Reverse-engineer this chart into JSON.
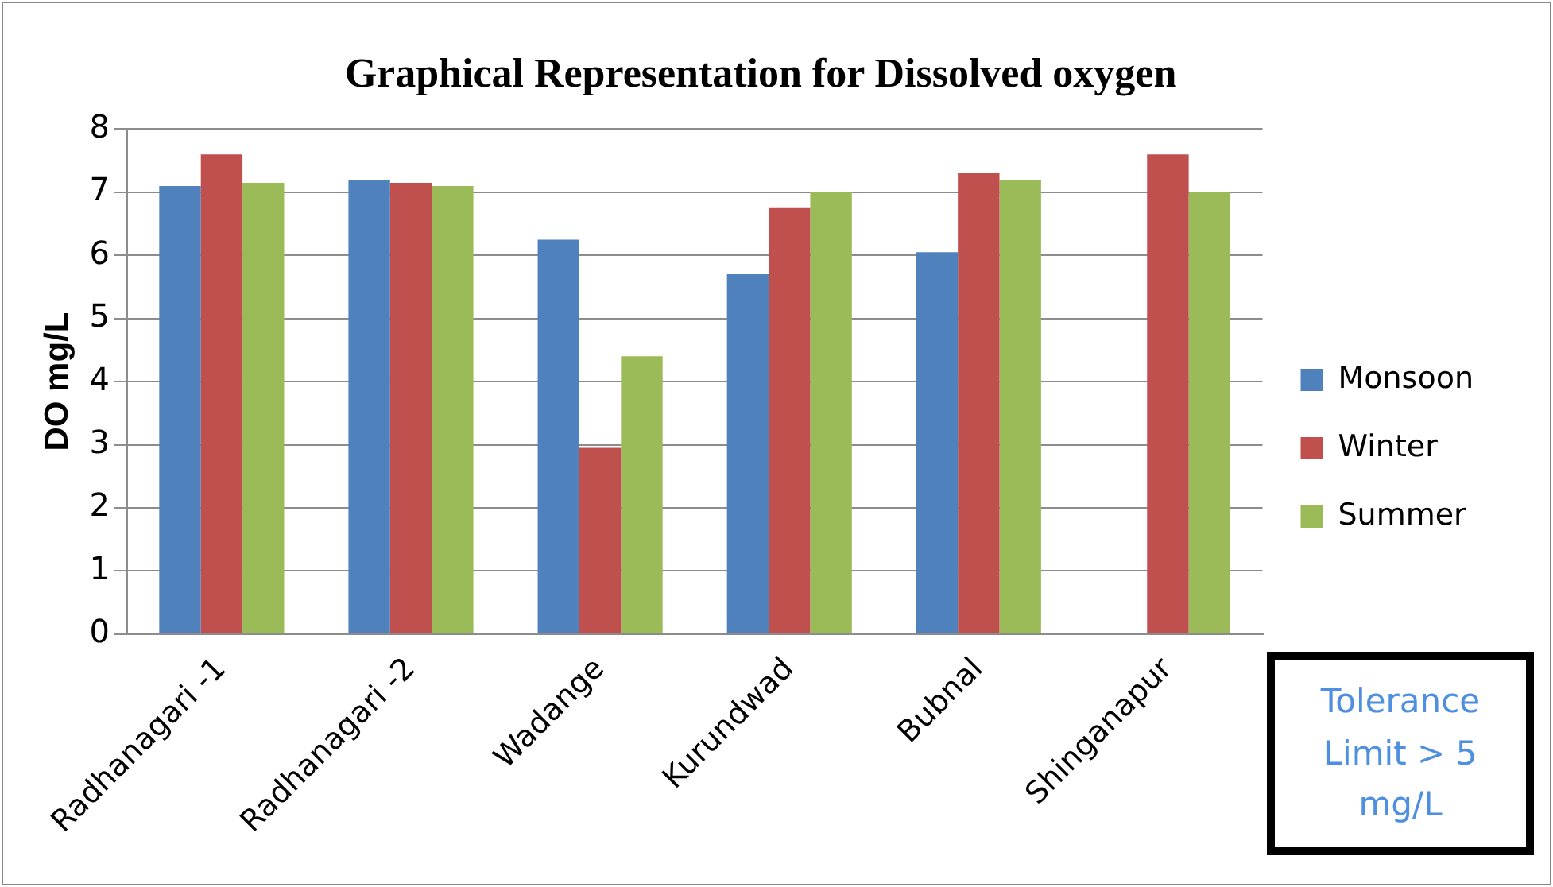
{
  "chart_data": {
    "type": "bar",
    "title": "Graphical Representation for Dissolved oxygen",
    "ylabel": "DO mg/L",
    "categories": [
      "Radhanagari -1",
      "Radhanagari -2",
      "Wadange",
      "Kurundwad",
      "Bubnal",
      "Shinganapur"
    ],
    "series": [
      {
        "name": "Monsoon",
        "color": "#4f81bd",
        "values": [
          7.1,
          7.2,
          6.25,
          5.7,
          6.05,
          null
        ]
      },
      {
        "name": "Winter",
        "color": "#c0504d",
        "values": [
          7.6,
          7.15,
          2.95,
          6.75,
          7.3,
          7.6
        ]
      },
      {
        "name": "Summer",
        "color": "#9bbb59",
        "values": [
          7.15,
          7.1,
          4.4,
          7.0,
          7.2,
          7.0
        ]
      }
    ],
    "ylim": [
      0,
      8
    ],
    "yticks": [
      0,
      1,
      2,
      3,
      4,
      5,
      6,
      7,
      8
    ],
    "grid": "y",
    "legend": "right",
    "annotations": [
      "Tolerance Limit > 5 mg/L"
    ]
  }
}
